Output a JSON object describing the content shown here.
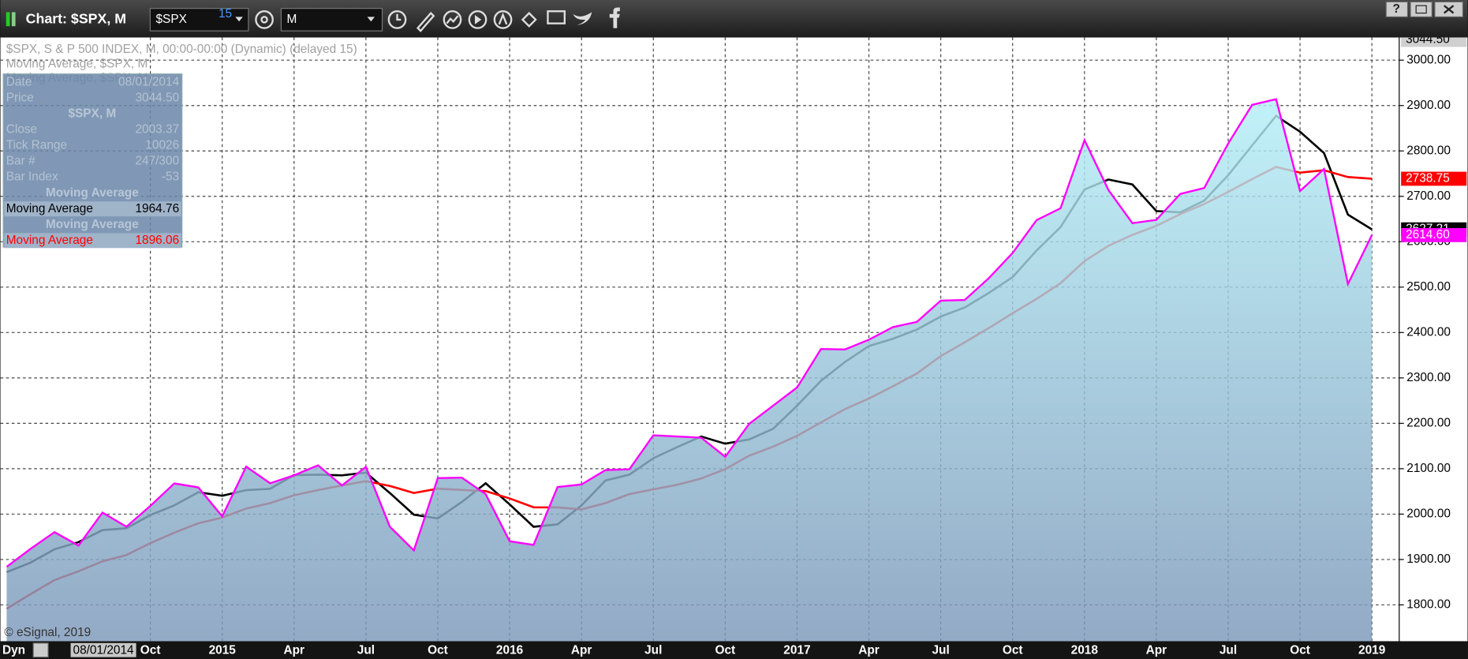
{
  "window": {
    "title": "Chart: $SPX, M",
    "symbol": "$SPX",
    "delay": "15",
    "interval": "M",
    "help_button": "?"
  },
  "data_window": {
    "rows": [
      {
        "label": "Date",
        "value": "08/01/2014"
      },
      {
        "label": "Price",
        "value": "3044.50"
      },
      {
        "header": "$SPX, M"
      },
      {
        "label": "Close",
        "value": "2003.37"
      },
      {
        "label": "Tick Range",
        "value": "10026"
      },
      {
        "label": "Bar #",
        "value": "247/300"
      },
      {
        "label": "Bar Index",
        "value": "-53"
      },
      {
        "header": "Moving Average"
      },
      {
        "label": "Moving Average",
        "value": "1964.76",
        "color": "#000000"
      },
      {
        "header": "Moving Average"
      },
      {
        "label": "Moving Average",
        "value": "1896.06",
        "color": "#ff0000"
      }
    ]
  },
  "footer": {
    "mode": "Dyn",
    "cursor_date": "08/01/2014",
    "watermark": "© eSignal, 2019"
  },
  "chart_data": {
    "type": "line",
    "categories": [
      null,
      null,
      null,
      null,
      null,
      null,
      "Oct",
      null,
      null,
      "2015",
      null,
      null,
      "Apr",
      null,
      null,
      "Jul",
      null,
      null,
      "Oct",
      null,
      null,
      "2016",
      null,
      null,
      "Apr",
      null,
      null,
      "Jul",
      null,
      null,
      "Oct",
      null,
      null,
      "2017",
      null,
      null,
      "Apr",
      null,
      null,
      "Jul",
      null,
      null,
      "Oct",
      null,
      null,
      "2018",
      null,
      null,
      "Apr",
      null,
      null,
      "Jul",
      null,
      null,
      "Oct",
      null,
      null,
      "2019"
    ],
    "ylim": [
      1720,
      3050
    ],
    "yticks": [
      {
        "value": 1800,
        "label": "1800.00"
      },
      {
        "value": 1900,
        "label": "1900.00"
      },
      {
        "value": 2000,
        "label": "2000.00"
      },
      {
        "value": 2100,
        "label": "2100.00"
      },
      {
        "value": 2200,
        "label": "2200.00"
      },
      {
        "value": 2300,
        "label": "2300.00"
      },
      {
        "value": 2400,
        "label": "2400.00"
      },
      {
        "value": 2500,
        "label": "2500.00"
      },
      {
        "value": 2600,
        "label": "2600.00"
      },
      {
        "value": 2700,
        "label": "2700.00"
      },
      {
        "value": 2800,
        "label": "2800.00"
      },
      {
        "value": 2900,
        "label": "2900.00"
      },
      {
        "value": 3000,
        "label": "3000.00"
      }
    ],
    "grid": true,
    "price_tag": {
      "value": 3044.5,
      "label": "3044.50"
    },
    "series": [
      {
        "name": "$SPX, S & P 500 INDEX, M, 00:00-00:00 (Dynamic) (delayed 15)",
        "color": "#ff00ff",
        "area": true,
        "fill_colors": [
          "#b4eff7",
          "#7b97b9"
        ],
        "values": [
          1883.95,
          1923.57,
          1960.23,
          1930.67,
          2003.37,
          1972.29,
          2018.05,
          2067.56,
          2058.9,
          1994.99,
          2104.5,
          2067.89,
          2085.51,
          2107.39,
          2063.11,
          2103.84,
          1972.18,
          1920.03,
          2079.36,
          2080.41,
          2043.94,
          1940.24,
          1932.23,
          2059.74,
          2065.3,
          2096.96,
          2098.86,
          2173.6,
          2170.95,
          2168.27,
          2126.15,
          2198.81,
          2238.83,
          2278.87,
          2363.64,
          2362.72,
          2384.2,
          2411.8,
          2423.41,
          2470.3,
          2471.65,
          2519.36,
          2575.26,
          2647.58,
          2673.61,
          2823.81,
          2713.83,
          2640.87,
          2648.05,
          2705.27,
          2718.37,
          2816.29,
          2901.52,
          2913.98,
          2711.74,
          2760.17,
          2506.85,
          2614.6
        ],
        "value_labels": [
          null,
          null,
          null,
          null,
          null,
          null,
          null,
          null,
          null,
          null,
          null,
          null,
          null,
          null,
          null,
          null,
          null,
          null,
          null,
          null,
          null,
          null,
          null,
          null,
          null,
          null,
          null,
          null,
          null,
          null,
          null,
          null,
          null,
          null,
          null,
          null,
          null,
          null,
          null,
          null,
          null,
          null,
          null,
          null,
          null,
          null,
          null,
          null,
          null,
          null,
          null,
          null,
          null,
          null,
          null,
          null,
          null,
          "2614.60"
        ]
      },
      {
        "name": "Moving Average, $SPX, M",
        "color": "#000000",
        "values": [
          1871.9,
          1893.3,
          1922.6,
          1938.2,
          1964.76,
          1968.8,
          1997.9,
          2019.3,
          2048.2,
          2040.5,
          2052.8,
          2055.8,
          2086.0,
          2086.9,
          2085.3,
          2091.4,
          2046.4,
          1998.7,
          1990.5,
          2026.6,
          2067.9,
          2021.5,
          1972.1,
          1977.4,
          2019.1,
          2074.0,
          2087.0,
          2123.1,
          2147.8,
          2170.9,
          2155.1,
          2164.4,
          2187.9,
          2238.8,
          2293.8,
          2335.1,
          2370.2,
          2386.2,
          2406.5,
          2435.2,
          2455.1,
          2487.1,
          2522.1,
          2580.7,
          2632.1,
          2715.0,
          2737.1,
          2726.2,
          2667.6,
          2664.7,
          2690.6,
          2746.6,
          2812.1,
          2877.3,
          2842.4,
          2795.3,
          2659.6,
          2627.21
        ],
        "value_labels": [
          null,
          null,
          null,
          null,
          null,
          null,
          null,
          null,
          null,
          null,
          null,
          null,
          null,
          null,
          null,
          null,
          null,
          null,
          null,
          null,
          null,
          null,
          null,
          null,
          null,
          null,
          null,
          null,
          null,
          null,
          null,
          null,
          null,
          null,
          null,
          null,
          null,
          null,
          null,
          null,
          null,
          null,
          null,
          null,
          null,
          null,
          null,
          null,
          null,
          null,
          null,
          null,
          null,
          null,
          null,
          null,
          null,
          "2627.21"
        ]
      },
      {
        "name": "Moving Average, $SPX, M",
        "color": "#ff0000",
        "values": [
          1791.5,
          1823.8,
          1854.8,
          1874.1,
          1896.06,
          1909.8,
          1936.0,
          1959.1,
          1979.8,
          1992.2,
          2012.3,
          2024.2,
          2041.5,
          2053.0,
          2063.1,
          2072.6,
          2062.0,
          2046.6,
          2056.0,
          2053.3,
          2050.6,
          2034.5,
          2015.0,
          2014.7,
          2010.4,
          2024.2,
          2044.1,
          2054.6,
          2064.6,
          2078.5,
          2099.1,
          2128.7,
          2148.6,
          2172.4,
          2202.0,
          2231.3,
          2254.7,
          2281.5,
          2309.8,
          2348.1,
          2378.4,
          2409.6,
          2442.5,
          2474.0,
          2508.6,
          2557.4,
          2591.0,
          2615.1,
          2634.9,
          2660.8,
          2683.0,
          2709.7,
          2737.96,
          2764.7,
          2752.2,
          2757.4,
          2742.5,
          2738.75
        ],
        "value_labels": [
          null,
          null,
          null,
          null,
          null,
          null,
          null,
          null,
          null,
          null,
          null,
          null,
          null,
          null,
          null,
          null,
          null,
          null,
          null,
          null,
          null,
          null,
          null,
          null,
          null,
          null,
          null,
          null,
          null,
          null,
          null,
          null,
          null,
          null,
          null,
          null,
          null,
          null,
          null,
          null,
          null,
          null,
          null,
          null,
          null,
          null,
          null,
          null,
          null,
          null,
          null,
          null,
          null,
          null,
          null,
          null,
          null,
          "2738.75"
        ]
      }
    ]
  }
}
